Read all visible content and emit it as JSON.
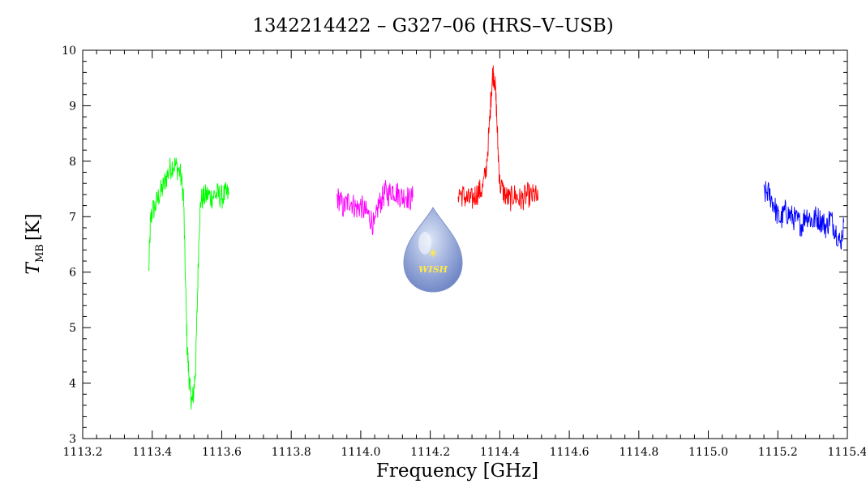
{
  "chart_data": {
    "type": "line",
    "title": "1342214422 – G327–06 (HRS–V–USB)",
    "xlabel": "Frequency [GHz]",
    "ylabel_main": "T",
    "ylabel_sub": "MB",
    "ylabel_unit": "[K]",
    "xlim": [
      1113.2,
      1115.4
    ],
    "ylim": [
      3,
      10
    ],
    "x_ticks": [
      1113.2,
      1113.4,
      1113.6,
      1113.8,
      1114.0,
      1114.2,
      1114.4,
      1114.6,
      1114.8,
      1115.0,
      1115.2,
      1115.4
    ],
    "x_tick_labels": [
      "1113.2",
      "1113.4",
      "1113.6",
      "1113.8",
      "1114.0",
      "1114.2",
      "1114.4",
      "1114.6",
      "1114.8",
      "1115.0",
      "1115.2",
      "1115.4"
    ],
    "y_ticks": [
      3,
      4,
      5,
      6,
      7,
      8,
      9,
      10
    ],
    "y_tick_labels": [
      "3",
      "4",
      "5",
      "6",
      "7",
      "8",
      "9",
      "10"
    ],
    "grid": false,
    "series": [
      {
        "color": "#00ff00",
        "x": [
          1113.39,
          1113.395,
          1113.4,
          1113.41,
          1113.42,
          1113.43,
          1113.44,
          1113.45,
          1113.46,
          1113.47,
          1113.48,
          1113.49,
          1113.495,
          1113.5,
          1113.505,
          1113.51,
          1113.515,
          1113.52,
          1113.525,
          1113.53,
          1113.535,
          1113.54,
          1113.55,
          1113.56,
          1113.57,
          1113.58,
          1113.59,
          1113.6,
          1113.61,
          1113.62
        ],
        "y": [
          6.0,
          6.9,
          7.1,
          7.2,
          7.4,
          7.5,
          7.7,
          7.85,
          7.95,
          7.9,
          7.8,
          7.4,
          6.0,
          4.7,
          4.2,
          3.8,
          3.65,
          3.9,
          4.3,
          5.5,
          6.8,
          7.3,
          7.35,
          7.4,
          7.35,
          7.4,
          7.4,
          7.35,
          7.4,
          7.4
        ]
      },
      {
        "color": "#ff00ff",
        "x": [
          1113.93,
          1113.94,
          1113.95,
          1113.96,
          1113.97,
          1113.98,
          1113.99,
          1114.0,
          1114.01,
          1114.02,
          1114.03,
          1114.04,
          1114.05,
          1114.06,
          1114.07,
          1114.08,
          1114.09,
          1114.1,
          1114.11,
          1114.12,
          1114.13,
          1114.14,
          1114.15
        ],
        "y": [
          7.35,
          7.3,
          7.15,
          7.25,
          7.3,
          7.2,
          7.15,
          7.2,
          7.1,
          7.05,
          6.95,
          6.8,
          7.2,
          7.3,
          7.45,
          7.4,
          7.5,
          7.45,
          7.4,
          7.35,
          7.4,
          7.3,
          7.35
        ]
      },
      {
        "color": "#ff0000",
        "x": [
          1114.28,
          1114.29,
          1114.3,
          1114.31,
          1114.32,
          1114.33,
          1114.34,
          1114.35,
          1114.36,
          1114.37,
          1114.375,
          1114.38,
          1114.385,
          1114.39,
          1114.395,
          1114.4,
          1114.41,
          1114.42,
          1114.43,
          1114.44,
          1114.45,
          1114.46,
          1114.47,
          1114.48,
          1114.49,
          1114.5,
          1114.51
        ],
        "y": [
          7.45,
          7.4,
          7.35,
          7.3,
          7.3,
          7.4,
          7.45,
          7.5,
          7.8,
          8.6,
          9.2,
          9.6,
          9.5,
          9.0,
          8.2,
          7.6,
          7.45,
          7.35,
          7.3,
          7.4,
          7.35,
          7.3,
          7.35,
          7.4,
          7.35,
          7.4,
          7.3
        ]
      },
      {
        "color": "#0000ff",
        "x": [
          1115.16,
          1115.17,
          1115.18,
          1115.19,
          1115.2,
          1115.21,
          1115.22,
          1115.23,
          1115.24,
          1115.25,
          1115.26,
          1115.27,
          1115.28,
          1115.29,
          1115.3,
          1115.31,
          1115.32,
          1115.33,
          1115.34,
          1115.35,
          1115.36,
          1115.37,
          1115.38,
          1115.39
        ],
        "y": [
          7.4,
          7.45,
          7.35,
          7.2,
          7.0,
          6.95,
          7.1,
          7.05,
          7.0,
          6.95,
          6.9,
          6.85,
          7.05,
          7.0,
          6.9,
          7.0,
          6.95,
          6.9,
          6.8,
          7.0,
          6.85,
          6.7,
          6.5,
          6.9
        ]
      }
    ]
  },
  "logo": {
    "text": "WISH"
  }
}
